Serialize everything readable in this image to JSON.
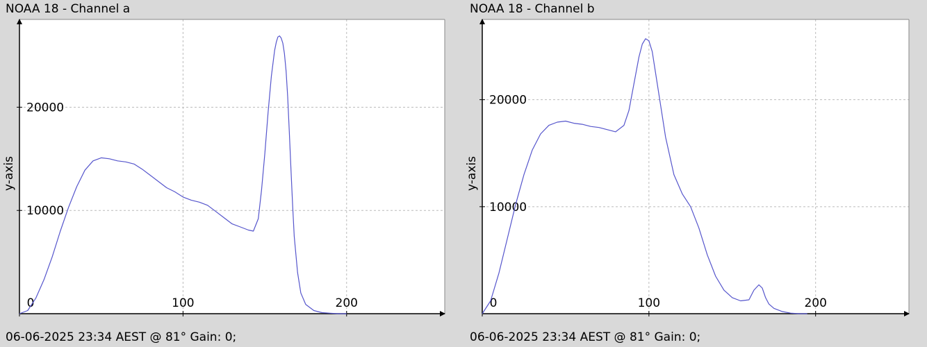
{
  "chart_data": [
    {
      "type": "line",
      "title": "NOAA 18 - Channel a",
      "xlabel": "",
      "ylabel": "y-axis",
      "footer": "06-06-2025 23:34 AEST @ 81° Gain: 0;",
      "xlim": [
        0,
        260
      ],
      "ylim": [
        0,
        28500
      ],
      "grid": true,
      "x_ticks": [
        0,
        100,
        200
      ],
      "y_ticks": [
        10000,
        20000
      ],
      "x_tick_labels": [
        "0",
        "100",
        "200"
      ],
      "y_tick_labels": [
        "10000",
        "20000"
      ],
      "line_color": "#5555cc",
      "series": [
        {
          "x": [
            0,
            5,
            10,
            15,
            20,
            25,
            30,
            35,
            40,
            45,
            50,
            55,
            60,
            65,
            70,
            75,
            80,
            85,
            90,
            95,
            100,
            105,
            110,
            115,
            120,
            125,
            130,
            135,
            140,
            143,
            146,
            148,
            150,
            152,
            154,
            156,
            157,
            158,
            159,
            160,
            161,
            162,
            163,
            164,
            165,
            166,
            167,
            168,
            170,
            172,
            175,
            180,
            185,
            190,
            195,
            200
          ],
          "y": [
            0,
            300,
            1500,
            3300,
            5500,
            8000,
            10300,
            12300,
            13900,
            14800,
            15100,
            15000,
            14800,
            14700,
            14500,
            14000,
            13400,
            12800,
            12200,
            11800,
            11300,
            11000,
            10800,
            10500,
            9900,
            9300,
            8700,
            8400,
            8100,
            8000,
            9200,
            12000,
            15500,
            19500,
            23000,
            25500,
            26300,
            26800,
            26900,
            26700,
            26200,
            25200,
            23500,
            21000,
            17500,
            14000,
            10500,
            7500,
            4000,
            2000,
            900,
            300,
            100,
            50,
            0,
            0
          ]
        }
      ]
    },
    {
      "type": "line",
      "title": "NOAA 18 - Channel b",
      "xlabel": "",
      "ylabel": "y-axis",
      "footer": "06-06-2025 23:34 AEST @ 81° Gain: 0;",
      "xlim": [
        0,
        256
      ],
      "ylim": [
        0,
        27500
      ],
      "grid": true,
      "x_ticks": [
        0,
        100,
        200
      ],
      "y_ticks": [
        10000,
        20000
      ],
      "x_tick_labels": [
        "0",
        "100",
        "200"
      ],
      "y_tick_labels": [
        "10000",
        "20000"
      ],
      "line_color": "#5555cc",
      "series": [
        {
          "x": [
            0,
            5,
            10,
            15,
            20,
            25,
            30,
            35,
            40,
            45,
            50,
            55,
            60,
            65,
            70,
            75,
            80,
            85,
            88,
            91,
            94,
            96,
            98,
            100,
            102,
            104,
            107,
            110,
            115,
            120,
            125,
            130,
            135,
            140,
            145,
            150,
            155,
            160,
            163,
            166,
            168,
            170,
            172,
            175,
            180,
            185,
            190,
            195
          ],
          "y": [
            0,
            1200,
            3800,
            7000,
            10200,
            13000,
            15300,
            16800,
            17600,
            17900,
            18000,
            17800,
            17700,
            17500,
            17400,
            17200,
            17000,
            17600,
            19000,
            21500,
            24000,
            25200,
            25700,
            25500,
            24500,
            22500,
            19500,
            16500,
            13000,
            11200,
            10000,
            8000,
            5500,
            3500,
            2200,
            1500,
            1200,
            1300,
            2200,
            2700,
            2400,
            1500,
            900,
            500,
            200,
            50,
            0,
            0
          ]
        }
      ]
    }
  ]
}
